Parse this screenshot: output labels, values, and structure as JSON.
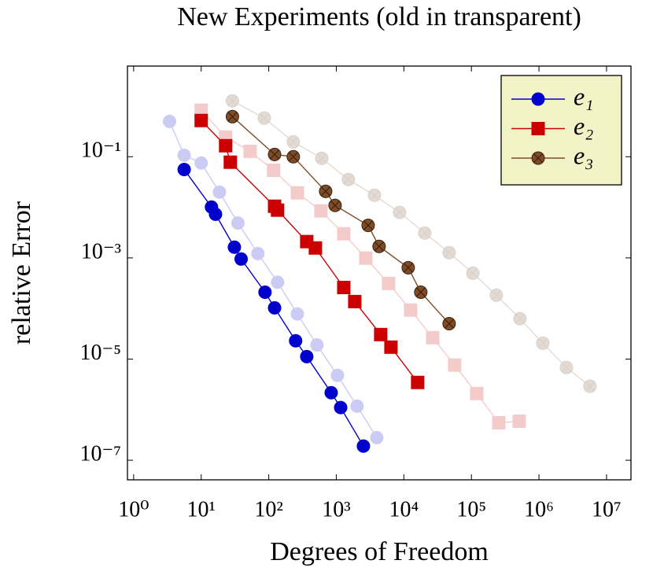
{
  "chart_data": {
    "type": "line",
    "title": "New Experiments (old in transparent)",
    "x_label": "Degrees of Freedom",
    "y_label": "relative Error",
    "x_scale": "log",
    "y_scale": "log",
    "legend": "upper right",
    "xlim": [
      0.81,
      23000000
    ],
    "ylim": [
      4.1e-08,
      6.2
    ],
    "xticks": [
      {
        "value": 1,
        "label": "10⁰"
      },
      {
        "value": 10,
        "label": "10¹"
      },
      {
        "value": 100,
        "label": "10²"
      },
      {
        "value": 1000,
        "label": "10³"
      },
      {
        "value": 10000,
        "label": "10⁴"
      },
      {
        "value": 100000,
        "label": "10⁵"
      },
      {
        "value": 1000000,
        "label": "10⁶"
      },
      {
        "value": 10000000,
        "label": "10⁷"
      }
    ],
    "yticks": [
      {
        "value": 0.1,
        "label": "10⁻¹"
      },
      {
        "value": 0.001,
        "label": "10⁻³"
      },
      {
        "value": 1e-05,
        "label": "10⁻⁵"
      },
      {
        "value": 1e-07,
        "label": "10⁻⁷"
      }
    ],
    "series": [
      {
        "color": "#0000cc",
        "marker": "circle",
        "opacity": 0.2,
        "x": [
          3.4,
          5.6,
          10,
          18.6,
          35,
          69,
          135,
          265,
          517,
          1040,
          2030,
          3970
        ],
        "values": [
          0.5,
          0.107,
          0.075,
          0.02,
          0.0049,
          0.00122,
          0.00033,
          7.8e-05,
          1.9e-05,
          4.75e-06,
          1.17e-06,
          2.8e-07
        ]
      },
      {
        "color": "#cc0000",
        "marker": "square",
        "opacity": 0.2,
        "x": [
          10,
          23,
          53,
          118,
          265,
          592,
          1290,
          2730,
          5940,
          12600,
          26700,
          56500,
          120000,
          254000,
          509000
        ],
        "values": [
          0.83,
          0.245,
          0.128,
          0.054,
          0.0193,
          0.0085,
          0.003,
          0.00099,
          0.000313,
          9.3e-05,
          2.65e-05,
          7.6e-06,
          2.08e-06,
          5.5e-07,
          5.9e-07
        ]
      },
      {
        "color": "#7f4c26",
        "marker": "otimes",
        "opacity": 0.2,
        "x": [
          29,
          86,
          231,
          608,
          1510,
          3670,
          8650,
          20400,
          46800,
          105000,
          234000,
          523000,
          1140000,
          2550000,
          5690000
        ],
        "values": [
          1.27,
          0.58,
          0.197,
          0.093,
          0.0354,
          0.0173,
          0.0079,
          0.0031,
          0.00127,
          0.0005,
          0.000183,
          6.3e-05,
          2.06e-05,
          6.8e-06,
          2.9e-06
        ]
      },
      {
        "name": "e₁",
        "color": "#0000cc",
        "marker": "circle",
        "opacity": 1,
        "x": [
          5.6,
          14.2,
          16.3,
          31,
          39,
          88,
          122,
          250,
          365,
          840,
          1160,
          2520
        ],
        "values": [
          0.056,
          0.0101,
          0.0073,
          0.00163,
          0.00095,
          0.00021,
          0.000103,
          2.3e-05,
          1.12e-05,
          2.16e-06,
          1.1e-06,
          1.9e-07
        ]
      },
      {
        "name": "e₂",
        "color": "#cc0000",
        "marker": "square",
        "opacity": 1,
        "x": [
          10,
          23,
          27,
          122,
          135,
          365,
          490,
          1290,
          1875,
          4540,
          6440,
          16000
        ],
        "values": [
          0.52,
          0.165,
          0.078,
          0.0105,
          0.0088,
          0.0021,
          0.00157,
          0.00026,
          0.000137,
          3.05e-05,
          1.72e-05,
          3.45e-06
        ]
      },
      {
        "name": "e₃",
        "color": "#7f4c26",
        "marker": "otimes",
        "opacity": 1,
        "x": [
          29,
          122,
          231,
          695,
          959,
          2960,
          4300,
          11600,
          17800,
          46800
        ],
        "values": [
          0.62,
          0.111,
          0.1,
          0.0207,
          0.0109,
          0.0044,
          0.00169,
          0.00064,
          0.00021,
          5e-05
        ]
      }
    ]
  }
}
